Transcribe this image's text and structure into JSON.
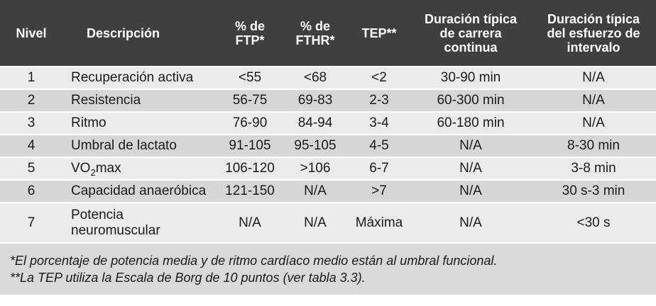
{
  "table": {
    "headers": [
      "Nivel",
      "Descripción",
      "% de FTP*",
      "% de FTHR*",
      "TEP**",
      "Duración típica de carrera continua",
      "Duración típica del esfuerzo de intervalo"
    ],
    "rows": [
      [
        "1",
        "Recuperación activa",
        "<55",
        "<68",
        "<2",
        "30-90 min",
        "N/A"
      ],
      [
        "2",
        "Resistencia",
        "56-75",
        "69-83",
        "2-3",
        "60-300 min",
        "N/A"
      ],
      [
        "3",
        "Ritmo",
        "76-90",
        "84-94",
        "3-4",
        "60-180 min",
        "N/A"
      ],
      [
        "4",
        "Umbral de lactato",
        "91-105",
        "95-105",
        "4-5",
        "N/A",
        "8-30 min"
      ],
      [
        "5",
        "VO2max",
        "106-120",
        ">106",
        "6-7",
        "N/A",
        "3-8 min"
      ],
      [
        "6",
        "Capacidad anaeróbica",
        "121-150",
        "N/A",
        ">7",
        "N/A",
        "30 s-3 min"
      ],
      [
        "7",
        "Potencia neuromuscular",
        "N/A",
        "N/A",
        "Máxima",
        "N/A",
        "<30 s"
      ]
    ]
  },
  "notes": {
    "line1": "*El porcentaje de potencia media y de ritmo cardíaco medio están al umbral funcional.",
    "line2": "**La TEP utiliza la Escala de Borg de 10 puntos (ver tabla 3.3)."
  }
}
